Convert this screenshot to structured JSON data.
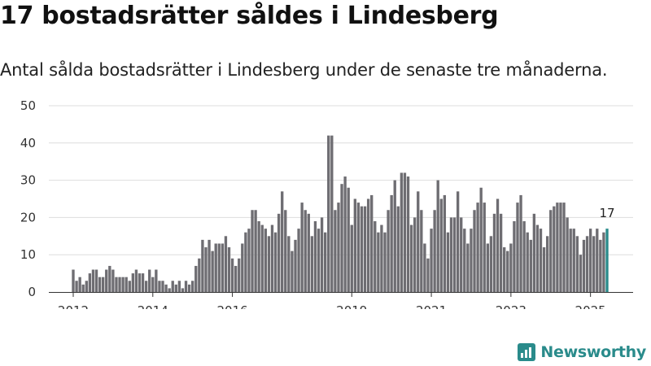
{
  "header": {
    "title": "17 bostadsrätter såldes i Lindesberg",
    "subtitle": "Antal sålda bostadsrätter i Lindesberg under de senaste tre månaderna."
  },
  "brand": {
    "name": "Newsworthy",
    "color": "#2a8b8b"
  },
  "colors": {
    "bar": "#6e6d72",
    "highlight": "#2a8b8b",
    "grid": "#dddddd"
  },
  "chart_data": {
    "type": "bar",
    "title": "17 bostadsrätter såldes i Lindesberg",
    "xlabel": "",
    "ylabel": "",
    "ylim": [
      0,
      50
    ],
    "yticks": [
      0,
      10,
      20,
      30,
      40,
      50
    ],
    "x_start": 2012.0,
    "x_step": 0.08333,
    "xticks": [
      2012,
      2014,
      2016,
      2019,
      2021,
      2023,
      2025
    ],
    "xtick_labels": [
      "2012",
      "2014",
      "2016",
      "2019",
      "2021",
      "2023",
      "2025"
    ],
    "values": [
      6,
      3,
      4,
      2,
      3,
      5,
      6,
      6,
      4,
      4,
      6,
      7,
      6,
      4,
      4,
      4,
      4,
      3,
      5,
      6,
      5,
      5,
      3,
      6,
      4,
      6,
      3,
      3,
      2,
      1,
      3,
      2,
      3,
      1,
      3,
      2,
      3,
      7,
      9,
      14,
      12,
      14,
      11,
      13,
      13,
      13,
      15,
      12,
      9,
      7,
      9,
      13,
      16,
      17,
      22,
      22,
      19,
      18,
      17,
      15,
      18,
      16,
      21,
      27,
      22,
      15,
      11,
      14,
      17,
      24,
      22,
      21,
      15,
      19,
      17,
      20,
      16,
      42,
      42,
      22,
      24,
      29,
      31,
      28,
      18,
      25,
      24,
      23,
      23,
      25,
      26,
      19,
      16,
      18,
      16,
      22,
      26,
      30,
      23,
      32,
      32,
      31,
      18,
      20,
      27,
      22,
      13,
      9,
      17,
      22,
      30,
      25,
      26,
      16,
      20,
      20,
      27,
      20,
      17,
      13,
      17,
      22,
      24,
      28,
      24,
      13,
      15,
      21,
      25,
      21,
      12,
      11,
      13,
      19,
      24,
      26,
      19,
      16,
      14,
      21,
      18,
      17,
      12,
      15,
      22,
      23,
      24,
      24,
      24,
      20,
      17,
      17,
      15,
      10,
      14,
      15,
      17,
      15,
      17,
      14,
      16,
      17
    ],
    "annotation": {
      "label": "17",
      "index": "last"
    }
  }
}
